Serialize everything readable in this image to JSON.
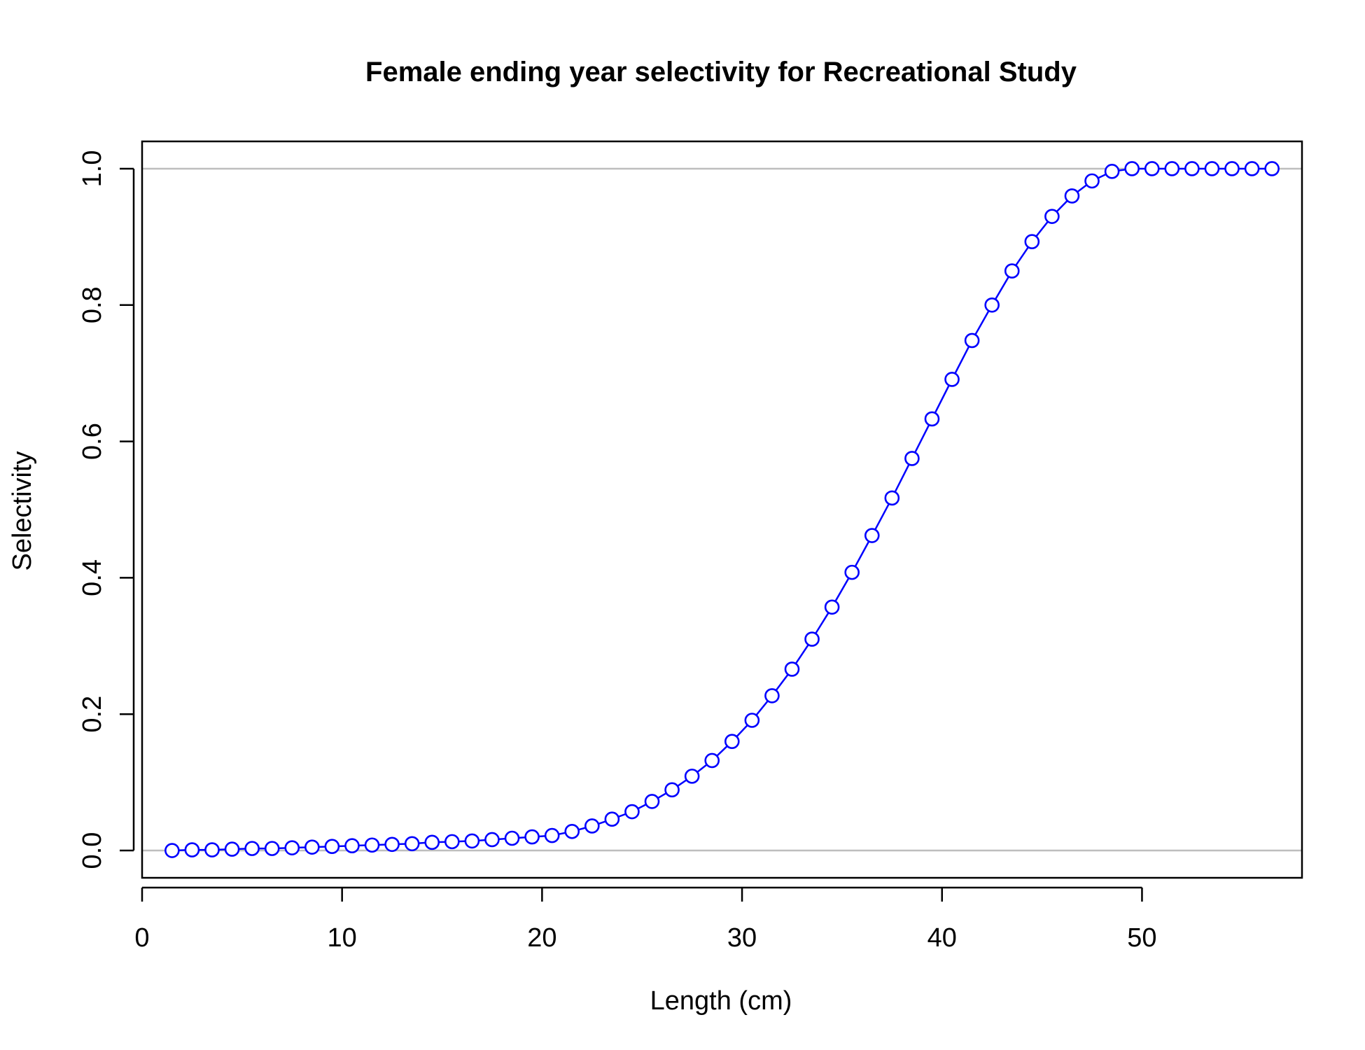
{
  "chart_data": {
    "type": "line",
    "title": "Female ending year selectivity for Recreational Study",
    "xlabel": "Length (cm)",
    "ylabel": "Selectivity",
    "xlim": [
      0,
      58
    ],
    "ylim": [
      -0.04,
      1.04
    ],
    "x_ticks": [
      0,
      10,
      20,
      30,
      40,
      50
    ],
    "x_tick_labels": [
      "0",
      "10",
      "20",
      "30",
      "40",
      "50"
    ],
    "y_ticks": [
      0,
      0.2,
      0.4,
      0.6,
      0.8,
      1.0
    ],
    "y_tick_labels": [
      "0.0",
      "0.2",
      "0.4",
      "0.6",
      "0.8",
      "1.0"
    ],
    "reference_lines": [
      0,
      1
    ],
    "grid": false,
    "colors": {
      "series": "#0000ff",
      "reference_line": "#bebebe",
      "axis": "#000000"
    },
    "series": [
      {
        "x": [
          1.5,
          2.5,
          3.5,
          4.5,
          5.5,
          6.5,
          7.5,
          8.5,
          9.5,
          10.5,
          11.5,
          12.5,
          13.5,
          14.5,
          15.5,
          16.5,
          17.5,
          18.5,
          19.5,
          20.5,
          21.5,
          22.5,
          23.5,
          24.5,
          25.5,
          26.5,
          27.5,
          28.5,
          29.5,
          30.5,
          31.5,
          32.5,
          33.5,
          34.5,
          35.5,
          36.5,
          37.5,
          38.5,
          39.5,
          40.5,
          41.5,
          42.5,
          43.5,
          44.5,
          45.5,
          46.5,
          47.5,
          48.5,
          49.5,
          50.5,
          51.5,
          52.5,
          53.5,
          54.5,
          55.5,
          56.5
        ],
        "y": [
          0.0,
          0.001,
          0.001,
          0.002,
          0.003,
          0.003,
          0.004,
          0.005,
          0.006,
          0.007,
          0.008,
          0.009,
          0.01,
          0.012,
          0.013,
          0.014,
          0.016,
          0.018,
          0.02,
          0.022,
          0.028,
          0.036,
          0.046,
          0.057,
          0.072,
          0.089,
          0.109,
          0.132,
          0.16,
          0.191,
          0.227,
          0.266,
          0.31,
          0.357,
          0.408,
          0.462,
          0.517,
          0.575,
          0.633,
          0.691,
          0.748,
          0.8,
          0.85,
          0.893,
          0.93,
          0.96,
          0.982,
          0.996,
          1.0,
          1.0,
          1.0,
          1.0,
          1.0,
          1.0,
          1.0,
          1.0
        ],
        "style": "line-with-open-circles"
      }
    ]
  }
}
